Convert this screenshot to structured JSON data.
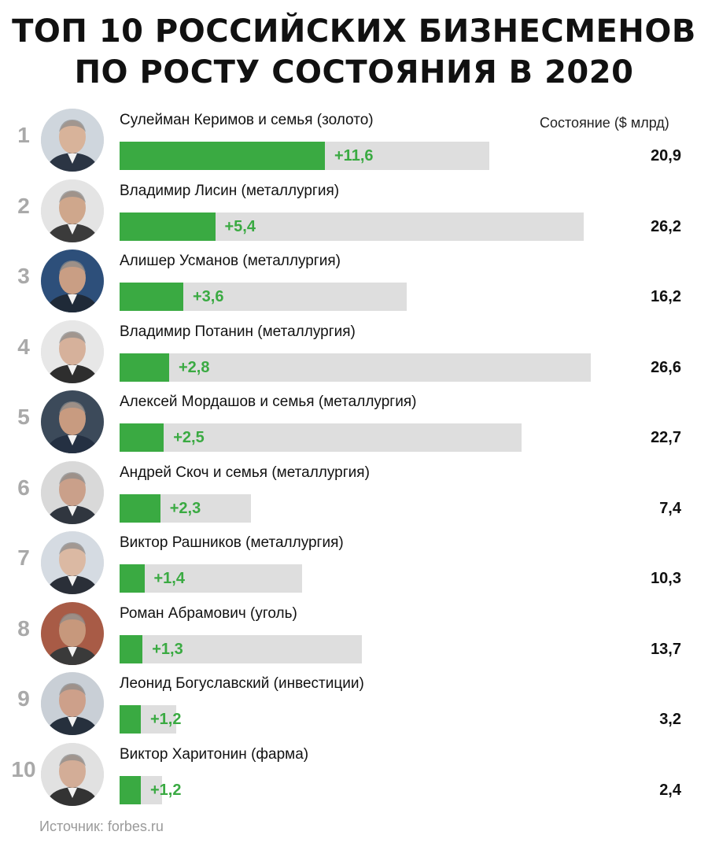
{
  "title_line1": "ТОП 10 РОССИЙСКИХ БИЗНЕСМЕНОВ",
  "title_line2": "ПО РОСТУ СОСТОЯНИЯ В 2020",
  "column_header": "Состояние ($ млрд)",
  "source": "Источник: forbes.ru",
  "colors": {
    "growth": "#3aaa42",
    "wealth_bar": "#dedede",
    "rank": "#a9a9a9"
  },
  "chart_data": {
    "type": "bar",
    "orientation": "horizontal",
    "title": "ТОП 10 РОССИЙСКИХ БИЗНЕСМЕНОВ ПО РОСТУ СОСТОЯНИЯ В 2020",
    "xlabel": "",
    "ylabel": "Состояние ($ млрд)",
    "categories": [
      "Сулейман Керимов и семья (золото)",
      "Владимир Лисин (металлургия)",
      "Алишер Усманов (металлургия)",
      "Владимир Потанин (металлургия)",
      "Алексей Мордашов и семья (металлургия)",
      "Андрей Скоч и семья (металлургия)",
      "Виктор Рашников (металлургия)",
      "Роман Абрамович (уголь)",
      "Леонид Богуславский (инвестиции)",
      "Виктор Харитонин (фарма)"
    ],
    "rows": [
      {
        "rank": "1",
        "name": "Сулейман Керимов и семья (золото)",
        "growth": 11.6,
        "growth_label": "+11,6",
        "wealth": 20.9,
        "wealth_label": "20,9"
      },
      {
        "rank": "2",
        "name": "Владимир Лисин (металлургия)",
        "growth": 5.4,
        "growth_label": "+5,4",
        "wealth": 26.2,
        "wealth_label": "26,2"
      },
      {
        "rank": "3",
        "name": "Алишер Усманов (металлургия)",
        "growth": 3.6,
        "growth_label": "+3,6",
        "wealth": 16.2,
        "wealth_label": "16,2"
      },
      {
        "rank": "4",
        "name": "Владимир Потанин (металлургия)",
        "growth": 2.8,
        "growth_label": "+2,8",
        "wealth": 26.6,
        "wealth_label": "26,6"
      },
      {
        "rank": "5",
        "name": "Алексей Мордашов и семья (металлургия)",
        "growth": 2.5,
        "growth_label": "+2,5",
        "wealth": 22.7,
        "wealth_label": "22,7"
      },
      {
        "rank": "6",
        "name": "Андрей Скоч и семья (металлургия)",
        "growth": 2.3,
        "growth_label": "+2,3",
        "wealth": 7.4,
        "wealth_label": "7,4"
      },
      {
        "rank": "7",
        "name": "Виктор Рашников (металлургия)",
        "growth": 1.4,
        "growth_label": "+1,4",
        "wealth": 10.3,
        "wealth_label": "10,3"
      },
      {
        "rank": "8",
        "name": "Роман Абрамович (уголь)",
        "growth": 1.3,
        "growth_label": "+1,3",
        "wealth": 13.7,
        "wealth_label": "13,7"
      },
      {
        "rank": "9",
        "name": "Леонид Богуславский (инвестиции)",
        "growth": 1.2,
        "growth_label": "+1,2",
        "wealth": 3.2,
        "wealth_label": "3,2"
      },
      {
        "rank": "10",
        "name": "Виктор Харитонин (фарма)",
        "growth": 1.2,
        "growth_label": "+1,2",
        "wealth": 2.4,
        "wealth_label": "2,4"
      }
    ],
    "xlim": [
      0,
      26.6
    ],
    "grid": false,
    "legend": "none"
  }
}
